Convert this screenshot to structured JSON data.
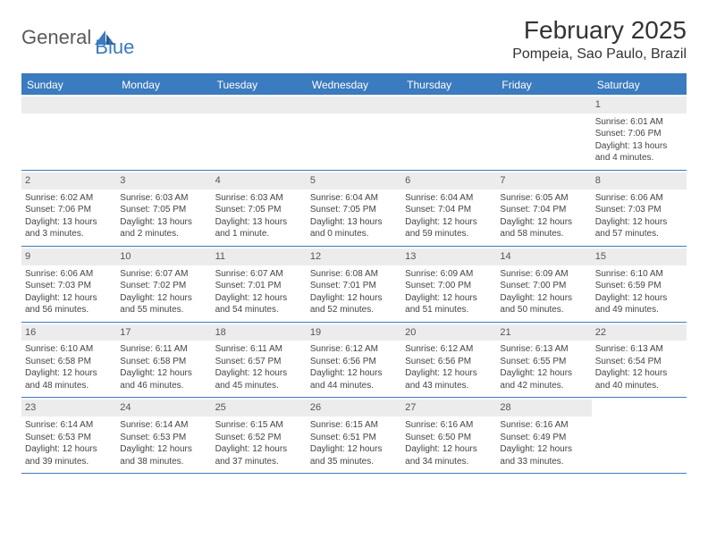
{
  "logo": {
    "word1": "General",
    "word2": "Blue"
  },
  "title": "February 2025",
  "location": "Pompeia, Sao Paulo, Brazil",
  "colors": {
    "brand_blue": "#3b7bbf",
    "header_gray": "#5a5a5a",
    "text": "#444444",
    "daybar_bg": "#ececec",
    "white": "#ffffff"
  },
  "weekdays": [
    "Sunday",
    "Monday",
    "Tuesday",
    "Wednesday",
    "Thursday",
    "Friday",
    "Saturday"
  ],
  "weeks": [
    [
      null,
      null,
      null,
      null,
      null,
      null,
      {
        "n": "1",
        "sr": "Sunrise: 6:01 AM",
        "ss": "Sunset: 7:06 PM",
        "d1": "Daylight: 13 hours",
        "d2": "and 4 minutes."
      }
    ],
    [
      {
        "n": "2",
        "sr": "Sunrise: 6:02 AM",
        "ss": "Sunset: 7:06 PM",
        "d1": "Daylight: 13 hours",
        "d2": "and 3 minutes."
      },
      {
        "n": "3",
        "sr": "Sunrise: 6:03 AM",
        "ss": "Sunset: 7:05 PM",
        "d1": "Daylight: 13 hours",
        "d2": "and 2 minutes."
      },
      {
        "n": "4",
        "sr": "Sunrise: 6:03 AM",
        "ss": "Sunset: 7:05 PM",
        "d1": "Daylight: 13 hours",
        "d2": "and 1 minute."
      },
      {
        "n": "5",
        "sr": "Sunrise: 6:04 AM",
        "ss": "Sunset: 7:05 PM",
        "d1": "Daylight: 13 hours",
        "d2": "and 0 minutes."
      },
      {
        "n": "6",
        "sr": "Sunrise: 6:04 AM",
        "ss": "Sunset: 7:04 PM",
        "d1": "Daylight: 12 hours",
        "d2": "and 59 minutes."
      },
      {
        "n": "7",
        "sr": "Sunrise: 6:05 AM",
        "ss": "Sunset: 7:04 PM",
        "d1": "Daylight: 12 hours",
        "d2": "and 58 minutes."
      },
      {
        "n": "8",
        "sr": "Sunrise: 6:06 AM",
        "ss": "Sunset: 7:03 PM",
        "d1": "Daylight: 12 hours",
        "d2": "and 57 minutes."
      }
    ],
    [
      {
        "n": "9",
        "sr": "Sunrise: 6:06 AM",
        "ss": "Sunset: 7:03 PM",
        "d1": "Daylight: 12 hours",
        "d2": "and 56 minutes."
      },
      {
        "n": "10",
        "sr": "Sunrise: 6:07 AM",
        "ss": "Sunset: 7:02 PM",
        "d1": "Daylight: 12 hours",
        "d2": "and 55 minutes."
      },
      {
        "n": "11",
        "sr": "Sunrise: 6:07 AM",
        "ss": "Sunset: 7:01 PM",
        "d1": "Daylight: 12 hours",
        "d2": "and 54 minutes."
      },
      {
        "n": "12",
        "sr": "Sunrise: 6:08 AM",
        "ss": "Sunset: 7:01 PM",
        "d1": "Daylight: 12 hours",
        "d2": "and 52 minutes."
      },
      {
        "n": "13",
        "sr": "Sunrise: 6:09 AM",
        "ss": "Sunset: 7:00 PM",
        "d1": "Daylight: 12 hours",
        "d2": "and 51 minutes."
      },
      {
        "n": "14",
        "sr": "Sunrise: 6:09 AM",
        "ss": "Sunset: 7:00 PM",
        "d1": "Daylight: 12 hours",
        "d2": "and 50 minutes."
      },
      {
        "n": "15",
        "sr": "Sunrise: 6:10 AM",
        "ss": "Sunset: 6:59 PM",
        "d1": "Daylight: 12 hours",
        "d2": "and 49 minutes."
      }
    ],
    [
      {
        "n": "16",
        "sr": "Sunrise: 6:10 AM",
        "ss": "Sunset: 6:58 PM",
        "d1": "Daylight: 12 hours",
        "d2": "and 48 minutes."
      },
      {
        "n": "17",
        "sr": "Sunrise: 6:11 AM",
        "ss": "Sunset: 6:58 PM",
        "d1": "Daylight: 12 hours",
        "d2": "and 46 minutes."
      },
      {
        "n": "18",
        "sr": "Sunrise: 6:11 AM",
        "ss": "Sunset: 6:57 PM",
        "d1": "Daylight: 12 hours",
        "d2": "and 45 minutes."
      },
      {
        "n": "19",
        "sr": "Sunrise: 6:12 AM",
        "ss": "Sunset: 6:56 PM",
        "d1": "Daylight: 12 hours",
        "d2": "and 44 minutes."
      },
      {
        "n": "20",
        "sr": "Sunrise: 6:12 AM",
        "ss": "Sunset: 6:56 PM",
        "d1": "Daylight: 12 hours",
        "d2": "and 43 minutes."
      },
      {
        "n": "21",
        "sr": "Sunrise: 6:13 AM",
        "ss": "Sunset: 6:55 PM",
        "d1": "Daylight: 12 hours",
        "d2": "and 42 minutes."
      },
      {
        "n": "22",
        "sr": "Sunrise: 6:13 AM",
        "ss": "Sunset: 6:54 PM",
        "d1": "Daylight: 12 hours",
        "d2": "and 40 minutes."
      }
    ],
    [
      {
        "n": "23",
        "sr": "Sunrise: 6:14 AM",
        "ss": "Sunset: 6:53 PM",
        "d1": "Daylight: 12 hours",
        "d2": "and 39 minutes."
      },
      {
        "n": "24",
        "sr": "Sunrise: 6:14 AM",
        "ss": "Sunset: 6:53 PM",
        "d1": "Daylight: 12 hours",
        "d2": "and 38 minutes."
      },
      {
        "n": "25",
        "sr": "Sunrise: 6:15 AM",
        "ss": "Sunset: 6:52 PM",
        "d1": "Daylight: 12 hours",
        "d2": "and 37 minutes."
      },
      {
        "n": "26",
        "sr": "Sunrise: 6:15 AM",
        "ss": "Sunset: 6:51 PM",
        "d1": "Daylight: 12 hours",
        "d2": "and 35 minutes."
      },
      {
        "n": "27",
        "sr": "Sunrise: 6:16 AM",
        "ss": "Sunset: 6:50 PM",
        "d1": "Daylight: 12 hours",
        "d2": "and 34 minutes."
      },
      {
        "n": "28",
        "sr": "Sunrise: 6:16 AM",
        "ss": "Sunset: 6:49 PM",
        "d1": "Daylight: 12 hours",
        "d2": "and 33 minutes."
      },
      null
    ]
  ]
}
